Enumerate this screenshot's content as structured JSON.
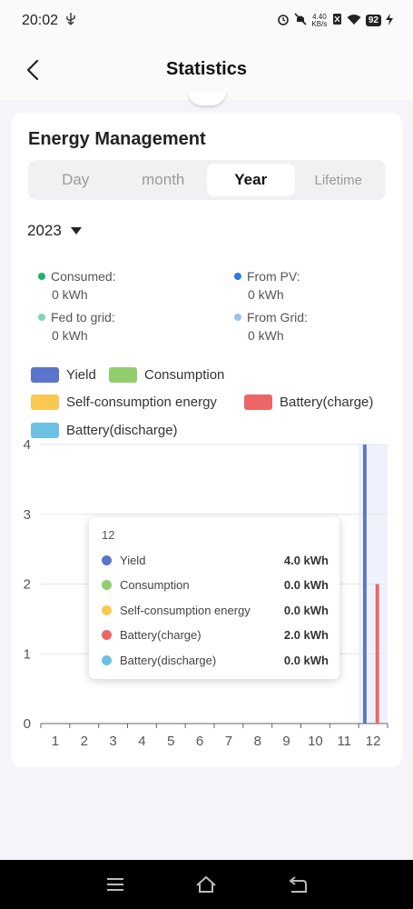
{
  "status_bar": {
    "time": "20:02",
    "usb_glyph": "⚡︎",
    "net_speed_top": "4.40",
    "net_speed_bottom": "KB/s",
    "battery": "92"
  },
  "header": {
    "title": "Statistics"
  },
  "card": {
    "title": "Energy Management",
    "tabs": [
      {
        "label": "Day"
      },
      {
        "label": "month"
      },
      {
        "label": "Year"
      },
      {
        "label": "Lifetime"
      }
    ],
    "active_tab": "Year",
    "year": "2023",
    "stats": [
      {
        "label": "Consumed:",
        "value": "0 kWh",
        "color": "#1db36b"
      },
      {
        "label": "From PV:",
        "value": "0 kWh",
        "color": "#2f7ad8"
      },
      {
        "label": "Fed to grid:",
        "value": "0 kWh",
        "color": "#7fd8b5"
      },
      {
        "label": "From Grid:",
        "value": "0 kWh",
        "color": "#9cc0ee"
      }
    ],
    "legend": [
      {
        "label": "Yield",
        "color": "#5b74cc"
      },
      {
        "label": "Consumption",
        "color": "#92cd6e"
      },
      {
        "label": "Self-consumption energy",
        "color": "#f9c851"
      },
      {
        "label": "Battery(charge)",
        "color": "#ec6666"
      },
      {
        "label": "Battery(discharge)",
        "color": "#6cc0e2"
      }
    ]
  },
  "chart_data": {
    "type": "bar",
    "categories": [
      "1",
      "2",
      "3",
      "4",
      "5",
      "6",
      "7",
      "8",
      "9",
      "10",
      "11",
      "12"
    ],
    "yticks": [
      "0",
      "1",
      "2",
      "3",
      "4"
    ],
    "ylim": [
      0,
      4
    ],
    "highlighted_category": "12",
    "series": [
      {
        "name": "Yield",
        "color": "#5b74cc",
        "values": [
          0,
          0,
          0,
          0,
          0,
          0,
          0,
          0,
          0,
          0,
          0,
          4.0
        ]
      },
      {
        "name": "Consumption",
        "color": "#92cd6e",
        "values": [
          0,
          0,
          0,
          0,
          0,
          0,
          0,
          0,
          0,
          0,
          0,
          0.0
        ]
      },
      {
        "name": "Self-consumption energy",
        "color": "#f9c851",
        "values": [
          0,
          0,
          0,
          0,
          0,
          0,
          0,
          0,
          0,
          0,
          0,
          0.0
        ]
      },
      {
        "name": "Battery(charge)",
        "color": "#ec6666",
        "values": [
          0,
          0,
          0,
          0,
          0,
          0,
          0,
          0,
          0,
          0,
          0,
          2.0
        ]
      },
      {
        "name": "Battery(discharge)",
        "color": "#6cc0e2",
        "values": [
          0,
          0,
          0,
          0,
          0,
          0,
          0,
          0,
          0,
          0,
          0,
          0.0
        ]
      }
    ],
    "grid": true,
    "legend": "top"
  },
  "tooltip": {
    "title": "12",
    "rows": [
      {
        "name": "Yield",
        "value": "4.0 kWh",
        "color": "#5b74cc"
      },
      {
        "name": "Consumption",
        "value": "0.0 kWh",
        "color": "#92cd6e"
      },
      {
        "name": "Self-consumption energy",
        "value": "0.0 kWh",
        "color": "#f9c851"
      },
      {
        "name": "Battery(charge)",
        "value": "2.0 kWh",
        "color": "#ec6666"
      },
      {
        "name": "Battery(discharge)",
        "value": "0.0 kWh",
        "color": "#6cc0e2"
      }
    ]
  }
}
